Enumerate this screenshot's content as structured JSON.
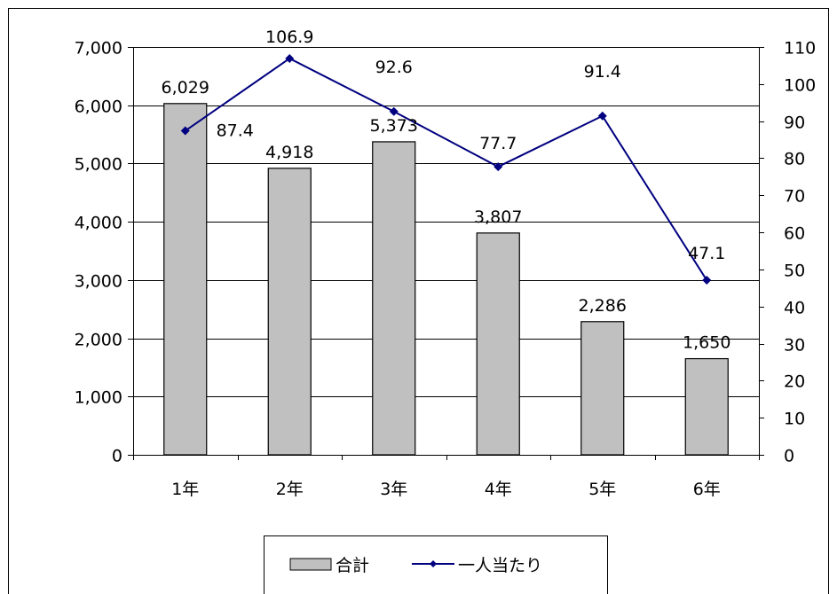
{
  "chart_data": {
    "type": "bar",
    "categories": [
      "1年",
      "2年",
      "3年",
      "4年",
      "5年",
      "6年"
    ],
    "series": [
      {
        "name": "合計",
        "type": "bar",
        "axis": "left",
        "values": [
          6029,
          4918,
          5373,
          3807,
          2286,
          1650
        ],
        "labels": [
          "6,029",
          "4,918",
          "5,373",
          "3,807",
          "2,286",
          "1,650"
        ],
        "color": "#c0c0c0"
      },
      {
        "name": "一人当たり",
        "type": "line",
        "axis": "right",
        "values": [
          87.4,
          106.9,
          92.6,
          77.7,
          91.4,
          47.1
        ],
        "labels": [
          "87.4",
          "106.9",
          "92.6",
          "77.7",
          "91.4",
          "47.1"
        ],
        "color": "#000080",
        "marker": "diamond"
      }
    ],
    "y_left": {
      "range": [
        0,
        7000
      ],
      "ticks": [
        0,
        1000,
        2000,
        3000,
        4000,
        5000,
        6000,
        7000
      ],
      "tick_labels": [
        "0",
        "1,000",
        "2,000",
        "3,000",
        "4,000",
        "5,000",
        "6,000",
        "7,000"
      ]
    },
    "y_right": {
      "range": [
        0,
        110
      ],
      "ticks": [
        0,
        10,
        20,
        30,
        40,
        50,
        60,
        70,
        80,
        90,
        100,
        110
      ],
      "tick_labels": [
        "0",
        "10",
        "20",
        "30",
        "40",
        "50",
        "60",
        "70",
        "80",
        "90",
        "100",
        "110"
      ]
    },
    "gridlines": true,
    "legend": {
      "position": "bottom"
    }
  }
}
